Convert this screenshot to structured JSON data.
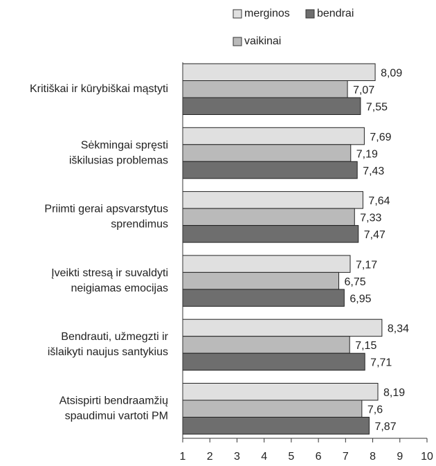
{
  "chart_data": {
    "type": "hbar",
    "categories": [
      [
        "Kritiškai ir kūrybiškai mąstyti"
      ],
      [
        "Sėkmingai spręsti",
        "iškilusias problemas"
      ],
      [
        "Priimti gerai apsvarstytus",
        "sprendimus"
      ],
      [
        "Įveikti stresą ir suvaldyti",
        "neigiamas emocijas"
      ],
      [
        "Bendrauti, užmegzti ir",
        "išlaikyti naujus santykius"
      ],
      [
        "Atsispirti bendraamžių",
        "spaudimui vartoti PM"
      ]
    ],
    "series": [
      {
        "name": "merginos",
        "color": "#e0e0e0",
        "values": [
          8.09,
          7.69,
          7.64,
          7.17,
          8.34,
          8.19
        ],
        "value_labels": [
          "8,09",
          "7,69",
          "7,64",
          "7,17",
          "8,34",
          "8,19"
        ]
      },
      {
        "name": "vaikinai",
        "color": "#bababa",
        "values": [
          7.07,
          7.19,
          7.33,
          6.75,
          7.15,
          7.6
        ],
        "value_labels": [
          "7,07",
          "7,19",
          "7,33",
          "6,75",
          "7,15",
          "7,6"
        ]
      },
      {
        "name": "bendrai",
        "color": "#6e6e6e",
        "values": [
          7.55,
          7.43,
          7.47,
          6.95,
          7.71,
          7.87
        ],
        "value_labels": [
          "7,55",
          "7,43",
          "7,47",
          "6,95",
          "7,71",
          "7,87"
        ]
      }
    ],
    "xlim": [
      1,
      10
    ],
    "xticks": [
      1,
      2,
      3,
      4,
      5,
      6,
      7,
      8,
      9,
      10
    ]
  }
}
